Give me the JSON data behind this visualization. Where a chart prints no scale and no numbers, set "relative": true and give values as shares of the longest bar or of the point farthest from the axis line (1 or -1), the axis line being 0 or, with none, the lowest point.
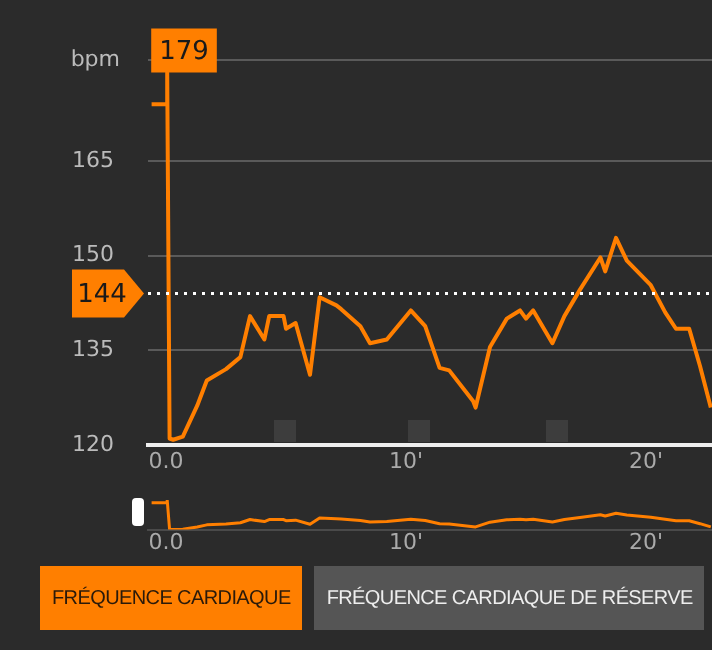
{
  "chart_data": [
    {
      "type": "line",
      "ylabel": "bpm",
      "grid": "y",
      "legend": false,
      "marker": "none",
      "line_style": "solid",
      "xlim": [
        -0.75,
        22.75
      ],
      "xticks": [
        {
          "value": 0,
          "label": "0.0"
        },
        {
          "value": 10,
          "label": "10'"
        },
        {
          "value": 20,
          "label": "20'"
        }
      ],
      "ylim": [
        120,
        181
      ],
      "yticks": [
        120,
        135,
        150,
        165,
        {
          "value": 181,
          "label": null
        }
      ],
      "series": [
        {
          "color": "#ff7f00",
          "x": [
            -0.6,
            -0.3,
            0.0,
            0.05,
            0.15,
            0.3,
            0.7,
            1.3,
            1.7,
            2.5,
            3.1,
            3.5,
            4.1,
            4.3,
            4.9,
            5.0,
            5.4,
            6.0,
            6.4,
            7.1,
            7.3,
            8.1,
            8.5,
            9.2,
            10.2,
            10.8,
            11.4,
            11.8,
            12.8,
            12.9,
            13.5,
            14.2,
            14.75,
            15.0,
            15.3,
            16.1,
            16.6,
            17.25,
            18.1,
            18.3,
            18.75,
            19.2,
            20.2,
            20.8,
            21.25,
            21.8,
            22.25,
            22.7
          ],
          "values": [
            174,
            174,
            174,
            179,
            121,
            120.8,
            121.3,
            126.2,
            130.2,
            132,
            133.9,
            140.4,
            136.7,
            140.4,
            140.4,
            138.4,
            139.3,
            131.1,
            143.4,
            142.1,
            141.5,
            138.8,
            136.1,
            136.7,
            141.3,
            138.8,
            132.2,
            131.8,
            126.9,
            125.9,
            135.5,
            140,
            141.3,
            140,
            141.3,
            136.1,
            140.4,
            144.6,
            149.7,
            147.5,
            152.8,
            149.2,
            145.3,
            141,
            138.4,
            138.4,
            132.5,
            125.9
          ]
        }
      ],
      "ref_lines": [
        {
          "axis": "y",
          "value": 144,
          "label": "144",
          "color": "#ffffff",
          "line_style": "dotted"
        }
      ],
      "annotations": [
        {
          "text": "179",
          "x": 0.05,
          "y": 179
        }
      ]
    },
    {
      "type": "line",
      "relative": true,
      "tick_labels": "x",
      "legend": false,
      "marker": "none",
      "xlim": [
        -0.75,
        22.75
      ],
      "xticks": [
        {
          "value": 0,
          "label": "0.0"
        },
        {
          "value": 10,
          "label": "10'"
        },
        {
          "value": 20,
          "label": "20'"
        }
      ],
      "series": [
        {
          "color": "#ff7f00",
          "x": [
            -0.6,
            -0.3,
            0.0,
            0.05,
            0.15,
            0.3,
            0.7,
            1.3,
            1.7,
            2.5,
            3.1,
            3.5,
            4.1,
            4.3,
            4.9,
            5.0,
            5.4,
            6.0,
            6.4,
            7.1,
            7.3,
            8.1,
            8.5,
            9.2,
            10.2,
            10.8,
            11.4,
            11.8,
            12.8,
            12.9,
            13.5,
            14.2,
            14.75,
            15.0,
            15.3,
            16.1,
            16.6,
            17.25,
            18.1,
            18.3,
            18.75,
            19.2,
            20.2,
            20.8,
            21.25,
            21.8,
            22.25,
            22.7
          ],
          "values": [
            0.91,
            0.91,
            0.91,
            1,
            0.0,
            0,
            0.01,
            0.09,
            0.16,
            0.19,
            0.23,
            0.34,
            0.27,
            0.34,
            0.34,
            0.3,
            0.32,
            0.18,
            0.39,
            0.37,
            0.36,
            0.31,
            0.26,
            0.27,
            0.35,
            0.31,
            0.2,
            0.19,
            0.1,
            0.09,
            0.25,
            0.33,
            0.35,
            0.33,
            0.35,
            0.26,
            0.34,
            0.41,
            0.5,
            0.46,
            0.55,
            0.49,
            0.42,
            0.35,
            0.3,
            0.3,
            0.2,
            0.09
          ]
        }
      ],
      "annotations": [
        "FRÉQUENCE CARDIAQUE",
        "FRÉQUENCE CARDIAQUE DE RÉSERVE"
      ]
    }
  ]
}
